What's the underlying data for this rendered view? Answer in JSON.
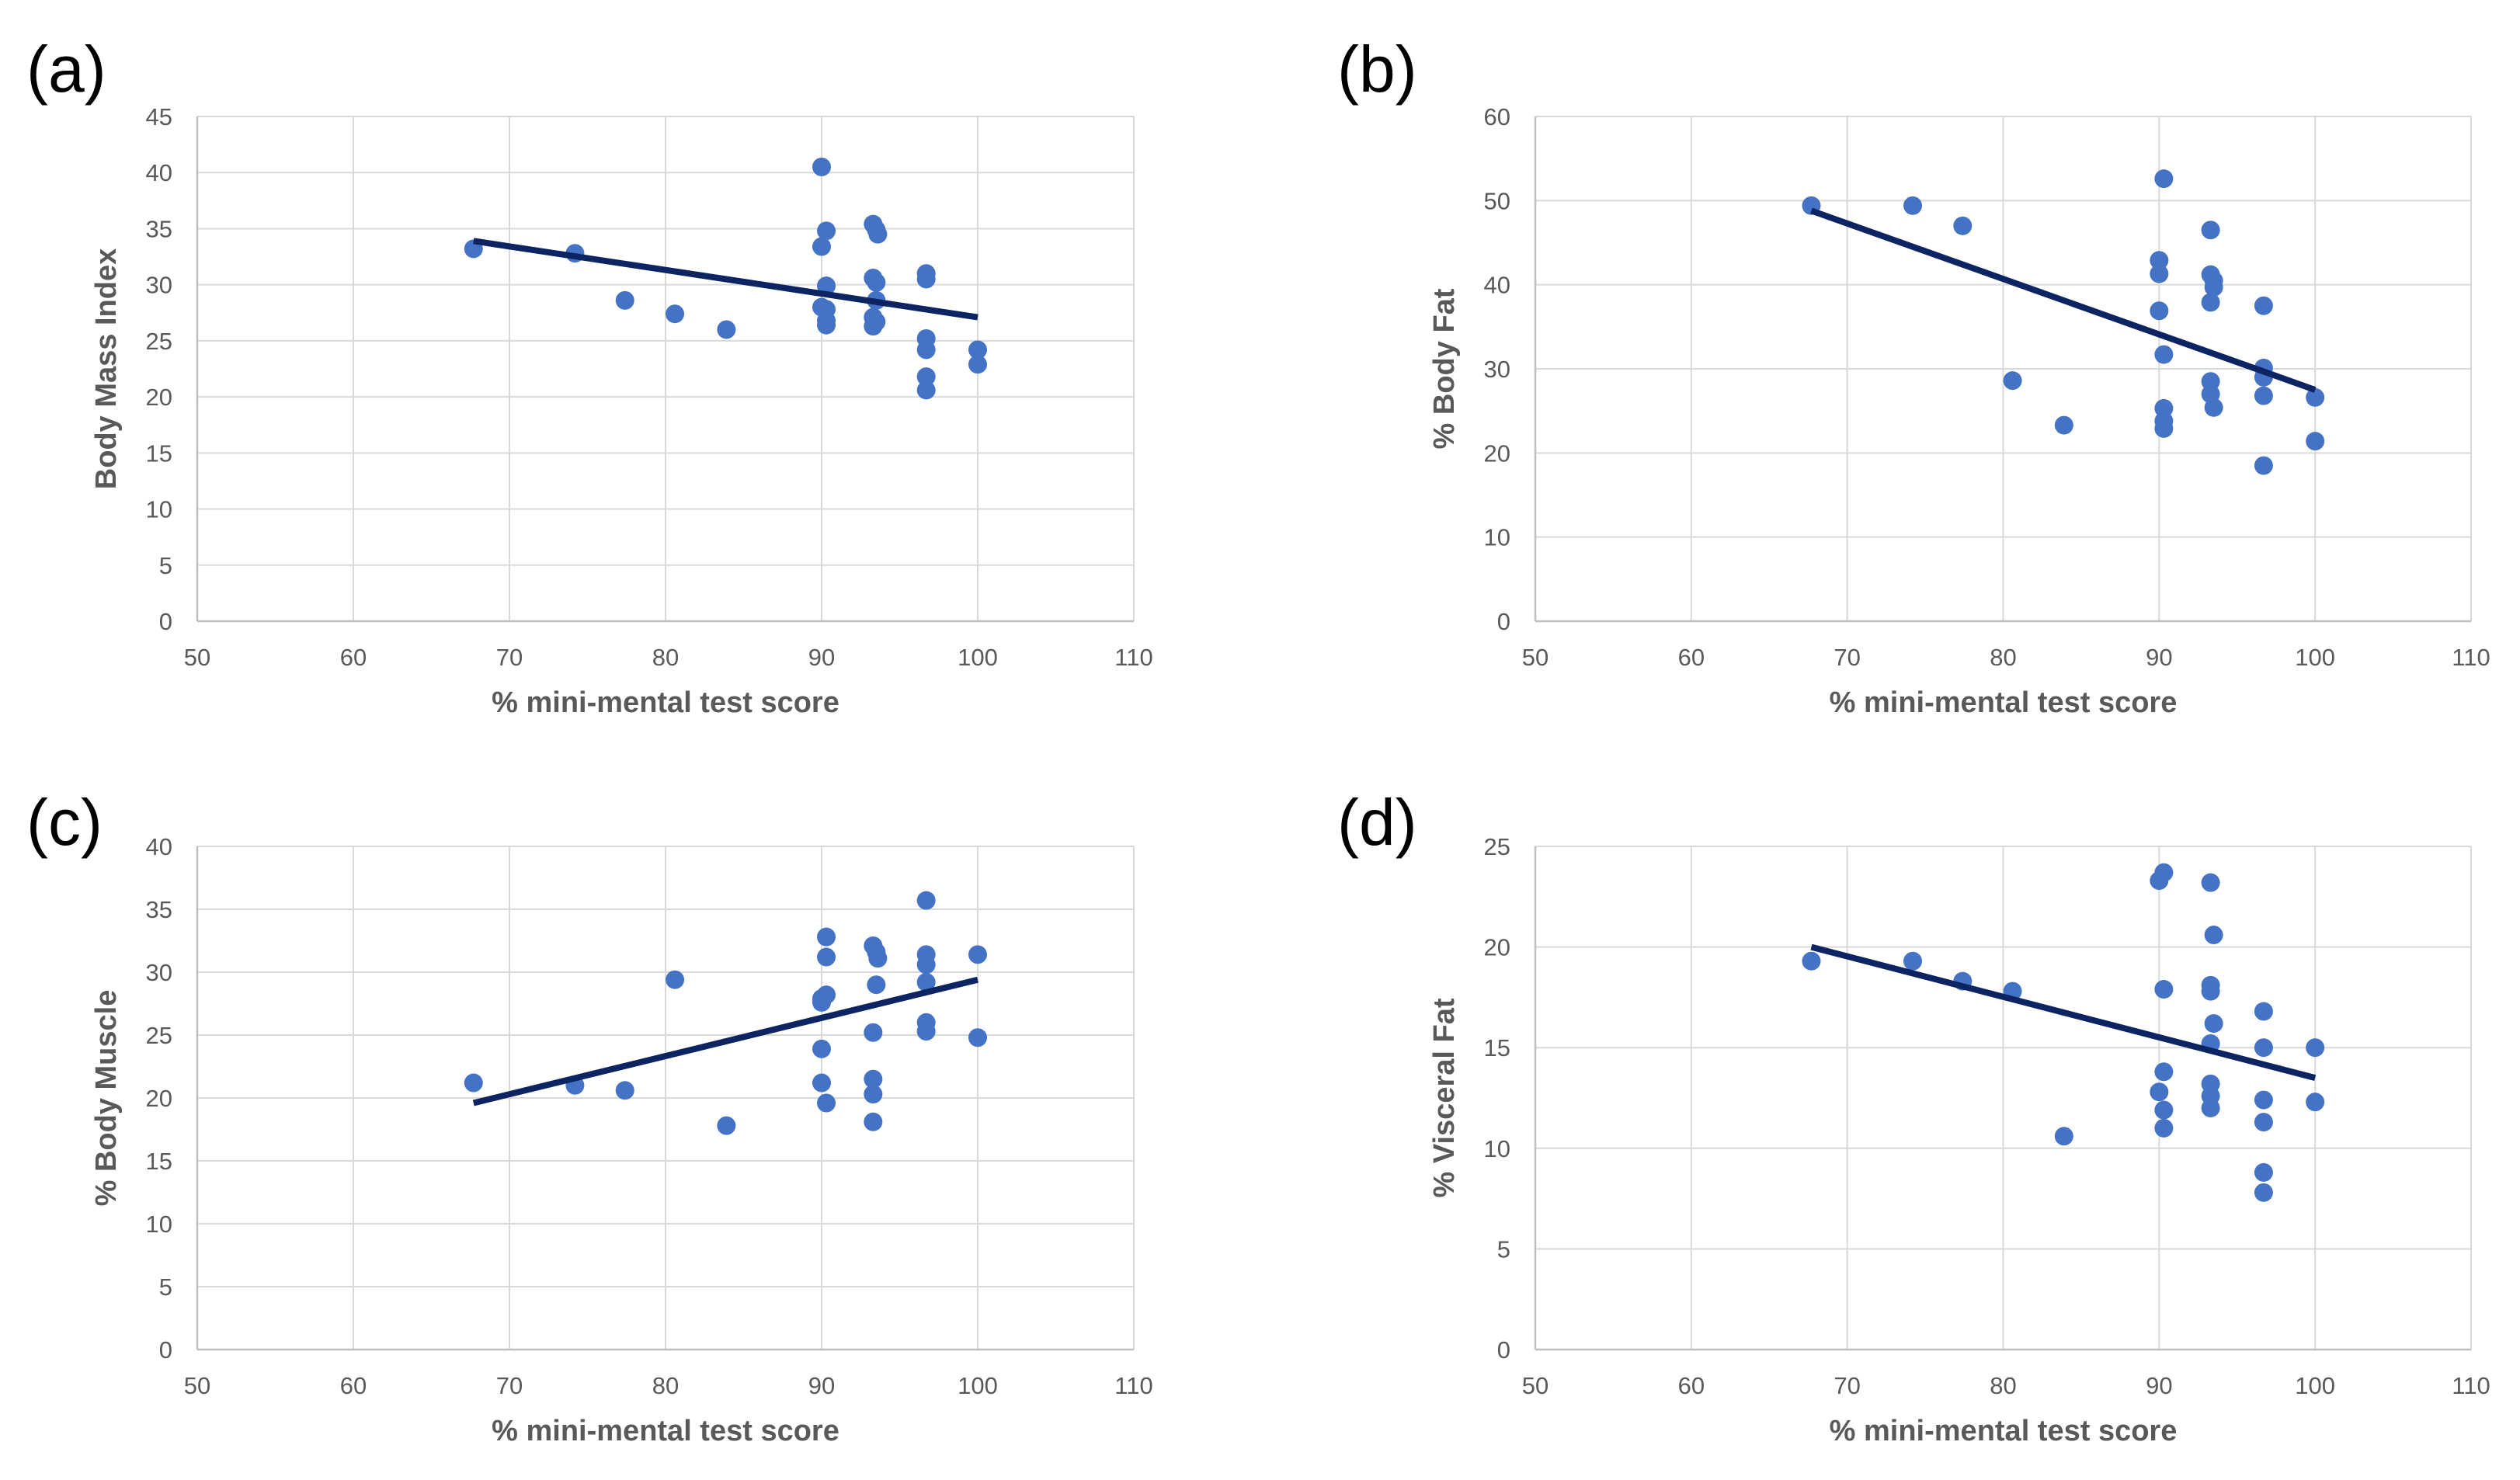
{
  "colors": {
    "marker": "#4472c4",
    "trendline": "#0c2461",
    "grid": "#d9d9d9",
    "text": "#595959"
  },
  "chart_data": [
    {
      "panel_label": "(a)",
      "type": "scatter",
      "xlabel": "% mini-mental test score",
      "ylabel": "Body Mass Index",
      "xlim": [
        50,
        110
      ],
      "ylim": [
        0,
        45
      ],
      "xticks": [
        50,
        60,
        70,
        80,
        90,
        100,
        110
      ],
      "yticks": [
        0,
        5,
        10,
        15,
        20,
        25,
        30,
        35,
        40,
        45
      ],
      "grid": true,
      "points": [
        [
          67.7,
          33.2
        ],
        [
          74.2,
          32.8
        ],
        [
          77.4,
          28.6
        ],
        [
          80.6,
          27.4
        ],
        [
          83.9,
          26.0
        ],
        [
          90.0,
          40.5
        ],
        [
          90.0,
          33.4
        ],
        [
          90.3,
          34.8
        ],
        [
          90.3,
          29.9
        ],
        [
          90.0,
          28.0
        ],
        [
          90.3,
          27.8
        ],
        [
          90.3,
          26.8
        ],
        [
          90.3,
          26.4
        ],
        [
          93.3,
          35.4
        ],
        [
          93.5,
          34.9
        ],
        [
          93.6,
          34.5
        ],
        [
          93.3,
          30.6
        ],
        [
          93.5,
          30.2
        ],
        [
          93.5,
          28.6
        ],
        [
          93.3,
          27.1
        ],
        [
          93.5,
          26.7
        ],
        [
          93.3,
          26.3
        ],
        [
          96.7,
          31.0
        ],
        [
          96.7,
          30.5
        ],
        [
          96.7,
          25.2
        ],
        [
          96.7,
          24.2
        ],
        [
          96.7,
          21.8
        ],
        [
          96.7,
          20.6
        ],
        [
          100.0,
          24.2
        ],
        [
          100.0,
          22.9
        ]
      ],
      "trendline": {
        "x": [
          67.7,
          100.0
        ],
        "y": [
          33.9,
          27.1
        ]
      }
    },
    {
      "panel_label": "(b)",
      "type": "scatter",
      "xlabel": "% mini-mental test score",
      "ylabel": "% Body Fat",
      "xlim": [
        50,
        110
      ],
      "ylim": [
        0,
        60
      ],
      "xticks": [
        50,
        60,
        70,
        80,
        90,
        100,
        110
      ],
      "yticks": [
        0,
        10,
        20,
        30,
        40,
        50,
        60
      ],
      "grid": true,
      "points": [
        [
          67.7,
          49.4
        ],
        [
          74.2,
          49.4
        ],
        [
          77.4,
          47.0
        ],
        [
          80.6,
          28.6
        ],
        [
          83.9,
          23.3
        ],
        [
          90.3,
          52.6
        ],
        [
          90.0,
          42.9
        ],
        [
          90.0,
          41.3
        ],
        [
          90.0,
          36.9
        ],
        [
          90.3,
          31.7
        ],
        [
          90.3,
          25.3
        ],
        [
          90.3,
          23.8
        ],
        [
          90.3,
          22.9
        ],
        [
          93.3,
          46.5
        ],
        [
          93.3,
          41.2
        ],
        [
          93.5,
          40.5
        ],
        [
          93.5,
          39.7
        ],
        [
          93.3,
          37.9
        ],
        [
          93.3,
          28.5
        ],
        [
          93.3,
          27.0
        ],
        [
          93.5,
          25.4
        ],
        [
          96.7,
          37.5
        ],
        [
          96.7,
          30.1
        ],
        [
          96.7,
          29.0
        ],
        [
          96.7,
          26.8
        ],
        [
          96.7,
          18.5
        ],
        [
          100.0,
          26.6
        ],
        [
          100.0,
          21.4
        ]
      ],
      "trendline": {
        "x": [
          67.7,
          100.0
        ],
        "y": [
          48.8,
          27.5
        ]
      }
    },
    {
      "panel_label": "(c)",
      "type": "scatter",
      "xlabel": "% mini-mental test score",
      "ylabel": "% Body Muscle",
      "xlim": [
        50,
        110
      ],
      "ylim": [
        0,
        40
      ],
      "xticks": [
        50,
        60,
        70,
        80,
        90,
        100,
        110
      ],
      "yticks": [
        0,
        5,
        10,
        15,
        20,
        25,
        30,
        35,
        40
      ],
      "grid": true,
      "points": [
        [
          67.7,
          21.2
        ],
        [
          74.2,
          21.0
        ],
        [
          77.4,
          20.6
        ],
        [
          80.6,
          29.4
        ],
        [
          83.9,
          17.8
        ],
        [
          90.3,
          32.8
        ],
        [
          90.3,
          31.2
        ],
        [
          90.3,
          28.2
        ],
        [
          90.0,
          27.9
        ],
        [
          90.0,
          27.6
        ],
        [
          90.0,
          23.9
        ],
        [
          90.0,
          21.2
        ],
        [
          90.3,
          19.6
        ],
        [
          93.3,
          32.1
        ],
        [
          93.5,
          31.6
        ],
        [
          93.6,
          31.1
        ],
        [
          93.5,
          29.0
        ],
        [
          93.3,
          25.2
        ],
        [
          93.3,
          21.5
        ],
        [
          93.3,
          20.3
        ],
        [
          93.3,
          18.1
        ],
        [
          96.7,
          35.7
        ],
        [
          96.7,
          31.4
        ],
        [
          96.7,
          30.6
        ],
        [
          96.7,
          29.2
        ],
        [
          96.7,
          26.0
        ],
        [
          96.7,
          25.3
        ],
        [
          100.0,
          31.4
        ],
        [
          100.0,
          24.8
        ]
      ],
      "trendline": {
        "x": [
          67.7,
          100.0
        ],
        "y": [
          19.6,
          29.4
        ]
      }
    },
    {
      "panel_label": "(d)",
      "type": "scatter",
      "xlabel": "% mini-mental test score",
      "ylabel": "% Visceral Fat",
      "xlim": [
        50,
        110
      ],
      "ylim": [
        0,
        25
      ],
      "xticks": [
        50,
        60,
        70,
        80,
        90,
        100,
        110
      ],
      "yticks": [
        0,
        5,
        10,
        15,
        20,
        25
      ],
      "grid": true,
      "points": [
        [
          67.7,
          19.3
        ],
        [
          74.2,
          19.3
        ],
        [
          77.4,
          18.3
        ],
        [
          80.6,
          17.8
        ],
        [
          83.9,
          10.6
        ],
        [
          90.3,
          23.7
        ],
        [
          90.0,
          23.3
        ],
        [
          90.3,
          17.9
        ],
        [
          90.3,
          13.8
        ],
        [
          90.0,
          12.8
        ],
        [
          90.3,
          11.9
        ],
        [
          90.3,
          11.0
        ],
        [
          93.3,
          23.2
        ],
        [
          93.5,
          20.6
        ],
        [
          93.3,
          18.1
        ],
        [
          93.3,
          17.8
        ],
        [
          93.5,
          16.2
        ],
        [
          93.3,
          15.2
        ],
        [
          93.3,
          13.2
        ],
        [
          93.3,
          12.6
        ],
        [
          93.3,
          12.0
        ],
        [
          96.7,
          16.8
        ],
        [
          96.7,
          15.0
        ],
        [
          96.7,
          12.4
        ],
        [
          96.7,
          11.3
        ],
        [
          96.7,
          8.8
        ],
        [
          96.7,
          7.8
        ],
        [
          100.0,
          15.0
        ],
        [
          100.0,
          12.3
        ]
      ],
      "trendline": {
        "x": [
          67.7,
          100.0
        ],
        "y": [
          20.0,
          13.5
        ]
      }
    }
  ]
}
